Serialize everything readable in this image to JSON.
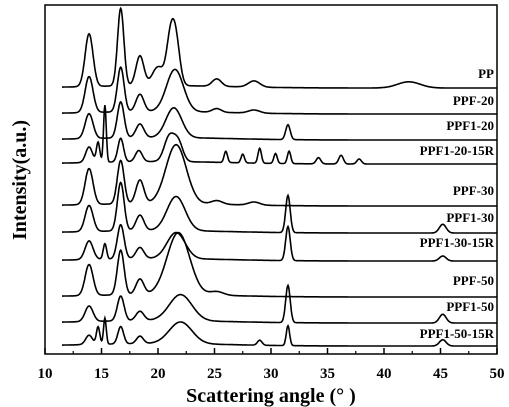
{
  "chart_data": {
    "type": "line",
    "title": "",
    "xlabel": "Scattering angle (° )",
    "ylabel": "Intensity(a.u.)",
    "xlim": [
      10,
      50
    ],
    "x_ticks": [
      10,
      15,
      20,
      25,
      30,
      35,
      40,
      45,
      50
    ],
    "y_ticks_shown": false,
    "grid": false,
    "legend": "labels beside each curve at right",
    "line_color": "#000000",
    "series": [
      {
        "name": "PP",
        "peaks": [
          {
            "x": 13.9,
            "h": 0.85,
            "w": 0.35
          },
          {
            "x": 16.7,
            "h": 1.25,
            "w": 0.28
          },
          {
            "x": 18.4,
            "h": 0.48,
            "w": 0.35
          },
          {
            "x": 20.0,
            "h": 0.3,
            "w": 0.5
          },
          {
            "x": 21.1,
            "h": 0.72,
            "w": 0.35
          },
          {
            "x": 21.6,
            "h": 0.66,
            "w": 0.35
          },
          {
            "x": 25.2,
            "h": 0.12,
            "w": 0.4
          },
          {
            "x": 28.5,
            "h": 0.1,
            "w": 0.5
          },
          {
            "x": 42.2,
            "h": 0.1,
            "w": 1.0
          }
        ]
      },
      {
        "name": "PPF-20",
        "peaks": [
          {
            "x": 13.9,
            "h": 0.58,
            "w": 0.35
          },
          {
            "x": 16.7,
            "h": 0.72,
            "w": 0.3
          },
          {
            "x": 18.4,
            "h": 0.28,
            "w": 0.35
          },
          {
            "x": 21.5,
            "h": 0.68,
            "w": 0.75
          },
          {
            "x": 25.2,
            "h": 0.06,
            "w": 0.4
          },
          {
            "x": 28.5,
            "h": 0.05,
            "w": 0.5
          }
        ]
      },
      {
        "name": "PPF1-20",
        "peaks": [
          {
            "x": 13.9,
            "h": 0.4,
            "w": 0.35
          },
          {
            "x": 16.7,
            "h": 0.58,
            "w": 0.3
          },
          {
            "x": 18.4,
            "h": 0.22,
            "w": 0.35
          },
          {
            "x": 21.4,
            "h": 0.48,
            "w": 0.7
          },
          {
            "x": 31.5,
            "h": 0.24,
            "w": 0.2
          }
        ]
      },
      {
        "name": "PPF1-20-15R",
        "peaks": [
          {
            "x": 13.9,
            "h": 0.25,
            "w": 0.3
          },
          {
            "x": 14.7,
            "h": 0.32,
            "w": 0.15
          },
          {
            "x": 15.3,
            "h": 0.92,
            "w": 0.12
          },
          {
            "x": 16.7,
            "h": 0.38,
            "w": 0.25
          },
          {
            "x": 18.3,
            "h": 0.18,
            "w": 0.3
          },
          {
            "x": 21.0,
            "h": 0.4,
            "w": 0.45
          },
          {
            "x": 21.8,
            "h": 0.3,
            "w": 0.4
          },
          {
            "x": 26.0,
            "h": 0.18,
            "w": 0.15
          },
          {
            "x": 27.5,
            "h": 0.14,
            "w": 0.15
          },
          {
            "x": 29.0,
            "h": 0.24,
            "w": 0.15
          },
          {
            "x": 30.4,
            "h": 0.16,
            "w": 0.15
          },
          {
            "x": 31.6,
            "h": 0.2,
            "w": 0.15
          },
          {
            "x": 34.2,
            "h": 0.1,
            "w": 0.2
          },
          {
            "x": 36.2,
            "h": 0.14,
            "w": 0.2
          },
          {
            "x": 37.8,
            "h": 0.08,
            "w": 0.2
          }
        ]
      },
      {
        "name": "PPF-30",
        "peaks": [
          {
            "x": 13.9,
            "h": 0.58,
            "w": 0.35
          },
          {
            "x": 16.7,
            "h": 0.7,
            "w": 0.3
          },
          {
            "x": 18.4,
            "h": 0.38,
            "w": 0.35
          },
          {
            "x": 21.6,
            "h": 0.95,
            "w": 0.9
          },
          {
            "x": 25.2,
            "h": 0.06,
            "w": 0.5
          },
          {
            "x": 28.5,
            "h": 0.05,
            "w": 0.5
          }
        ]
      },
      {
        "name": "PPF1-30",
        "peaks": [
          {
            "x": 13.9,
            "h": 0.42,
            "w": 0.35
          },
          {
            "x": 16.7,
            "h": 0.78,
            "w": 0.3
          },
          {
            "x": 18.4,
            "h": 0.25,
            "w": 0.35
          },
          {
            "x": 21.6,
            "h": 0.55,
            "w": 0.8
          },
          {
            "x": 31.5,
            "h": 0.6,
            "w": 0.2
          },
          {
            "x": 45.2,
            "h": 0.14,
            "w": 0.3
          }
        ]
      },
      {
        "name": "PPF1-30-15R",
        "peaks": [
          {
            "x": 13.9,
            "h": 0.3,
            "w": 0.35
          },
          {
            "x": 15.3,
            "h": 0.25,
            "w": 0.15
          },
          {
            "x": 16.7,
            "h": 0.55,
            "w": 0.3
          },
          {
            "x": 18.4,
            "h": 0.18,
            "w": 0.35
          },
          {
            "x": 21.6,
            "h": 0.42,
            "w": 0.8
          },
          {
            "x": 31.5,
            "h": 0.55,
            "w": 0.2
          },
          {
            "x": 45.2,
            "h": 0.08,
            "w": 0.3
          }
        ]
      },
      {
        "name": "PPF-50",
        "peaks": [
          {
            "x": 13.9,
            "h": 0.5,
            "w": 0.35
          },
          {
            "x": 16.7,
            "h": 0.72,
            "w": 0.3
          },
          {
            "x": 18.4,
            "h": 0.25,
            "w": 0.35
          },
          {
            "x": 21.8,
            "h": 1.0,
            "w": 1.0
          },
          {
            "x": 25.2,
            "h": 0.06,
            "w": 0.6
          }
        ]
      },
      {
        "name": "PPF1-50",
        "peaks": [
          {
            "x": 13.9,
            "h": 0.25,
            "w": 0.35
          },
          {
            "x": 16.7,
            "h": 0.4,
            "w": 0.3
          },
          {
            "x": 18.4,
            "h": 0.15,
            "w": 0.35
          },
          {
            "x": 22.0,
            "h": 0.42,
            "w": 1.0
          },
          {
            "x": 31.5,
            "h": 0.6,
            "w": 0.2
          },
          {
            "x": 45.2,
            "h": 0.14,
            "w": 0.3
          }
        ]
      },
      {
        "name": "PPF1-50-15R",
        "peaks": [
          {
            "x": 13.9,
            "h": 0.15,
            "w": 0.3
          },
          {
            "x": 14.7,
            "h": 0.28,
            "w": 0.15
          },
          {
            "x": 15.3,
            "h": 0.42,
            "w": 0.12
          },
          {
            "x": 16.7,
            "h": 0.28,
            "w": 0.25
          },
          {
            "x": 18.4,
            "h": 0.12,
            "w": 0.3
          },
          {
            "x": 22.0,
            "h": 0.35,
            "w": 1.0
          },
          {
            "x": 29.0,
            "h": 0.08,
            "w": 0.2
          },
          {
            "x": 31.5,
            "h": 0.32,
            "w": 0.15
          },
          {
            "x": 45.2,
            "h": 0.1,
            "w": 0.3
          }
        ]
      }
    ]
  }
}
